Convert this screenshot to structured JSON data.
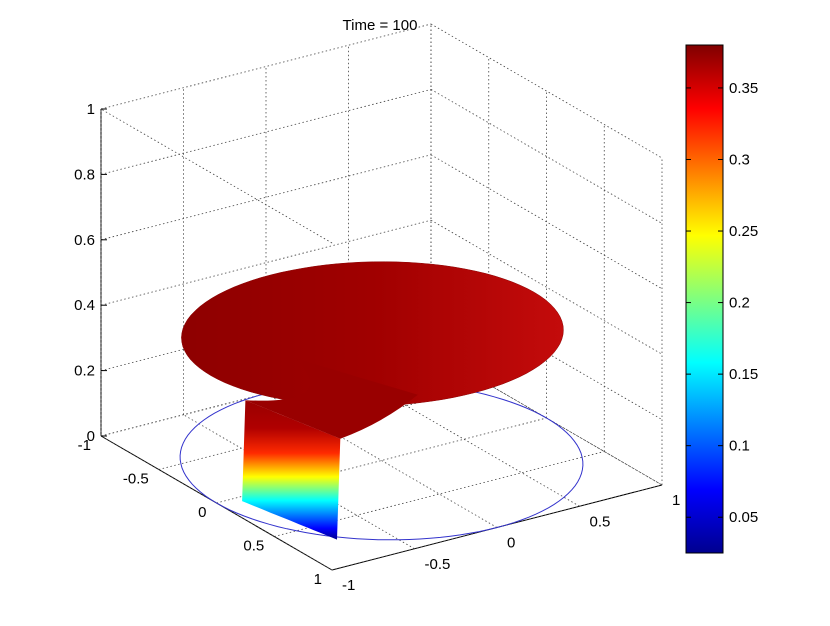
{
  "chart_data": {
    "type": "surface3d",
    "title": "Time = 100",
    "xlabel": "",
    "ylabel": "",
    "zlabel": "",
    "x_ticks": [
      "-1",
      "-0.5",
      "0",
      "0.5",
      "1"
    ],
    "y_ticks": [
      "-1",
      "-0.5",
      "0",
      "0.5",
      "1"
    ],
    "z_ticks": [
      "0",
      "0.2",
      "0.4",
      "0.6",
      "0.8",
      "1"
    ],
    "xlim": [
      -1,
      1
    ],
    "ylim": [
      -1,
      1
    ],
    "zlim": [
      0,
      1
    ],
    "grid": true,
    "colormap": "jet",
    "colorbar": {
      "location": "right",
      "range": [
        0.025,
        0.38
      ],
      "ticks": [
        "0.05",
        "0.1",
        "0.15",
        "0.2",
        "0.25",
        "0.3",
        "0.35"
      ]
    },
    "base_circle": {
      "radius": 1,
      "z": 0,
      "color": "#3333cc"
    },
    "surface": {
      "description_values": {
        "plateau_height": 0.35,
        "plateau_color_value": 0.37,
        "edge_min_height": 0.03
      }
    }
  }
}
